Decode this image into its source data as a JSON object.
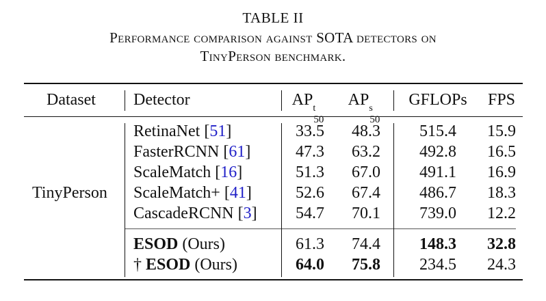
{
  "caption": {
    "label": "TABLE II",
    "line1": "Performance comparison against SOTA detectors on",
    "line2": "TinyPerson benchmark."
  },
  "headers": {
    "dataset": "Dataset",
    "detector": "Detector",
    "ap_t_base": "AP",
    "ap_t_sup": "t",
    "ap_t_sub": "50",
    "ap_s_base": "AP",
    "ap_s_sup": "s",
    "ap_s_sub": "50",
    "gflops": "GFLOPs",
    "fps": "FPS"
  },
  "dataset_name": "TinyPerson",
  "rows": [
    {
      "prefix": "",
      "name": "RetinaNet",
      "suffix": "",
      "cite": "51",
      "ap_t": "33.5",
      "ap_s": "48.3",
      "gflops": "515.4",
      "fps": "15.9"
    },
    {
      "prefix": "",
      "name": "FasterRCNN",
      "suffix": "",
      "cite": "61",
      "ap_t": "47.3",
      "ap_s": "63.2",
      "gflops": "492.8",
      "fps": "16.5"
    },
    {
      "prefix": "",
      "name": "ScaleMatch",
      "suffix": "",
      "cite": "16",
      "ap_t": "51.3",
      "ap_s": "67.0",
      "gflops": "491.1",
      "fps": "16.9"
    },
    {
      "prefix": "",
      "name": "ScaleMatch+",
      "suffix": "",
      "cite": "41",
      "ap_t": "52.6",
      "ap_s": "67.4",
      "gflops": "486.7",
      "fps": "18.3"
    },
    {
      "prefix": "",
      "name": "CascadeRCNN",
      "suffix": "",
      "cite": "3",
      "ap_t": "54.7",
      "ap_s": "70.1",
      "gflops": "739.0",
      "fps": "12.2"
    },
    {
      "prefix": "",
      "name": "ESOD",
      "suffix": "(Ours)",
      "cite": "",
      "ap_t": "61.3",
      "ap_s": "74.4",
      "gflops": "148.3",
      "fps": "32.8"
    },
    {
      "prefix": "†",
      "name": "ESOD",
      "suffix": "(Ours)",
      "cite": "",
      "ap_t": "64.0",
      "ap_s": "75.8",
      "gflops": "234.5",
      "fps": "24.3"
    }
  ],
  "bold_cells": {
    "5": [
      "name",
      "gflops",
      "fps"
    ],
    "6": [
      "name",
      "ap_t",
      "ap_s"
    ]
  }
}
